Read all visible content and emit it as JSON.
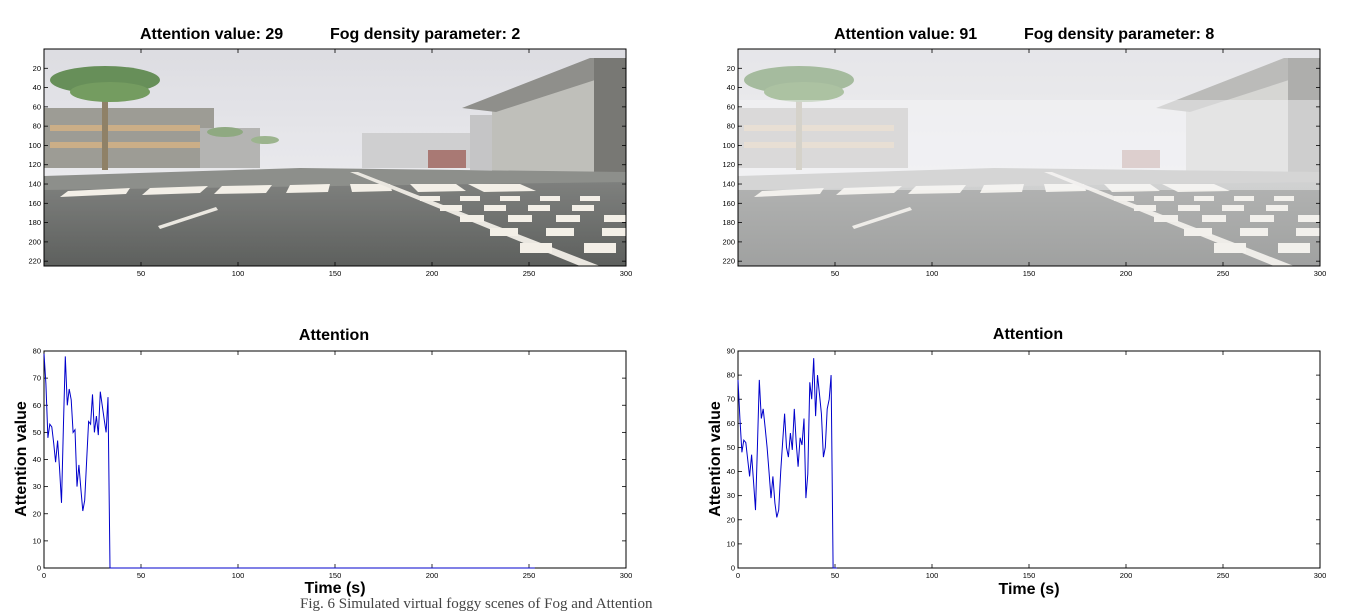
{
  "panels": [
    {
      "title_attention": "Attention value: 29",
      "title_fog": "Fog density parameter: 2",
      "fog": 2,
      "image_x_ticks": [
        "50",
        "100",
        "150",
        "200",
        "250",
        "300"
      ],
      "image_y_ticks": [
        "20",
        "40",
        "60",
        "80",
        "100",
        "120",
        "140",
        "160",
        "180",
        "200",
        "220"
      ]
    },
    {
      "title_attention": "Attention value: 91",
      "title_fog": "Fog density parameter: 8",
      "fog": 8,
      "image_x_ticks": [
        "50",
        "100",
        "150",
        "200",
        "250",
        "300"
      ],
      "image_y_ticks": [
        "20",
        "40",
        "60",
        "80",
        "100",
        "120",
        "140",
        "160",
        "180",
        "200",
        "220"
      ]
    }
  ],
  "chart_data": [
    {
      "type": "line",
      "title": "Attention",
      "xlabel": "Time (s)",
      "ylabel": "Attention value",
      "xlim": [
        0,
        300
      ],
      "ylim": [
        0,
        80
      ],
      "xticks": [
        "0",
        "50",
        "100",
        "150",
        "200",
        "250",
        "300"
      ],
      "yticks": [
        "0",
        "10",
        "20",
        "30",
        "40",
        "50",
        "60",
        "70",
        "80"
      ],
      "grid": false,
      "color": "#0000cc",
      "series": [
        {
          "x": [
            0,
            1,
            2,
            3,
            4,
            5,
            6,
            7,
            8,
            9,
            10,
            11,
            12,
            13,
            14,
            15,
            16,
            17,
            18,
            19,
            20,
            21,
            22,
            23,
            24,
            25,
            26,
            27,
            28,
            29,
            30,
            31,
            32,
            33,
            34,
            35,
            36,
            37,
            38,
            60,
            90,
            120,
            150,
            180,
            210,
            240,
            253
          ],
          "y": [
            79,
            68,
            48,
            53,
            52,
            46,
            39,
            47,
            37,
            24,
            52,
            78,
            60,
            66,
            62,
            50,
            51,
            30,
            38,
            29,
            21,
            25,
            40,
            54,
            53,
            64,
            50,
            56,
            49,
            65,
            60,
            55,
            50,
            63,
            0,
            0,
            0,
            0,
            0,
            0,
            0,
            0,
            0,
            0,
            0,
            0,
            0
          ]
        }
      ]
    },
    {
      "type": "line",
      "title": "Attention",
      "xlabel": "Time (s)",
      "ylabel": "Attention value",
      "xlim": [
        0,
        300
      ],
      "ylim": [
        0,
        90
      ],
      "xticks": [
        "0",
        "50",
        "100",
        "150",
        "200",
        "250",
        "300"
      ],
      "yticks": [
        "0",
        "10",
        "20",
        "30",
        "40",
        "50",
        "60",
        "70",
        "80",
        "90"
      ],
      "grid": false,
      "color": "#0000cc",
      "series": [
        {
          "x": [
            0,
            1,
            2,
            3,
            4,
            5,
            6,
            7,
            8,
            9,
            10,
            11,
            12,
            13,
            14,
            15,
            16,
            17,
            18,
            19,
            20,
            21,
            22,
            23,
            24,
            25,
            26,
            27,
            28,
            29,
            30,
            31,
            32,
            33,
            34,
            35,
            36,
            37,
            38,
            39,
            40,
            41,
            42,
            43,
            44,
            45,
            46,
            47,
            48,
            49,
            50,
            51
          ],
          "y": [
            78,
            62,
            48,
            53,
            52,
            45,
            38,
            47,
            36,
            24,
            50,
            78,
            62,
            66,
            58,
            50,
            40,
            29,
            38,
            27,
            21,
            24,
            40,
            52,
            64,
            50,
            46,
            56,
            49,
            66,
            52,
            42,
            54,
            51,
            62,
            29,
            39,
            77,
            70,
            87,
            63,
            80,
            72,
            64,
            46,
            50,
            66,
            70,
            80,
            0,
            0,
            0
          ]
        }
      ]
    }
  ],
  "caption": "Fig. 6 Simulated virtual foggy scenes of Fog and Attention"
}
